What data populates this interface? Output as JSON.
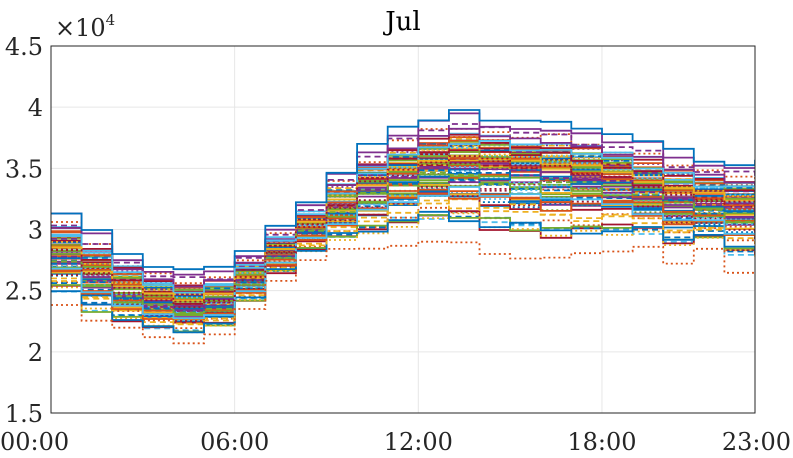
{
  "chart_data": {
    "type": "line",
    "title": "Jul",
    "xlabel": "",
    "ylabel": "",
    "y_multiplier": {
      "base": "×10",
      "exponent": "4"
    },
    "x_ticks": [
      "00:00",
      "06:00",
      "12:00",
      "18:00",
      "23:00"
    ],
    "x_tick_hours": [
      0,
      6,
      12,
      18,
      23
    ],
    "y_ticks": [
      "1.5",
      "2",
      "2.5",
      "3",
      "3.5",
      "4",
      "4.5"
    ],
    "y_tick_values": [
      1.5,
      2,
      2.5,
      3,
      3.5,
      4,
      4.5
    ],
    "xlim": [
      0,
      23
    ],
    "ylim": [
      1.5,
      4.5
    ],
    "grid": true,
    "style": "step",
    "series_count": 93,
    "envelope": {
      "hours": [
        0,
        1,
        2,
        3,
        4,
        5,
        6,
        7,
        8,
        9,
        10,
        11,
        12,
        13,
        14,
        15,
        16,
        17,
        18,
        19,
        20,
        21,
        22,
        23
      ],
      "min": [
        2.36,
        2.22,
        2.16,
        2.1,
        2.07,
        2.12,
        2.35,
        2.58,
        2.75,
        2.82,
        2.83,
        2.86,
        2.9,
        2.88,
        2.8,
        2.75,
        2.72,
        2.75,
        2.82,
        2.82,
        2.72,
        2.8,
        2.63,
        2.63
      ],
      "max": [
        3.16,
        3.0,
        2.83,
        2.73,
        2.69,
        2.7,
        2.84,
        3.03,
        3.24,
        3.49,
        3.7,
        3.84,
        3.93,
        3.99,
        3.94,
        3.89,
        3.88,
        3.84,
        3.79,
        3.75,
        3.66,
        3.6,
        3.57,
        3.57
      ],
      "median": [
        2.8,
        2.6,
        2.48,
        2.4,
        2.36,
        2.4,
        2.58,
        2.8,
        3.0,
        3.17,
        3.32,
        3.43,
        3.5,
        3.52,
        3.5,
        3.48,
        3.47,
        3.43,
        3.38,
        3.32,
        3.25,
        3.2,
        3.17,
        3.15
      ]
    },
    "colors": [
      "#0072BD",
      "#D95319",
      "#EDB120",
      "#7E2F8E",
      "#77AC30",
      "#4DBEEE",
      "#A2142F"
    ]
  }
}
